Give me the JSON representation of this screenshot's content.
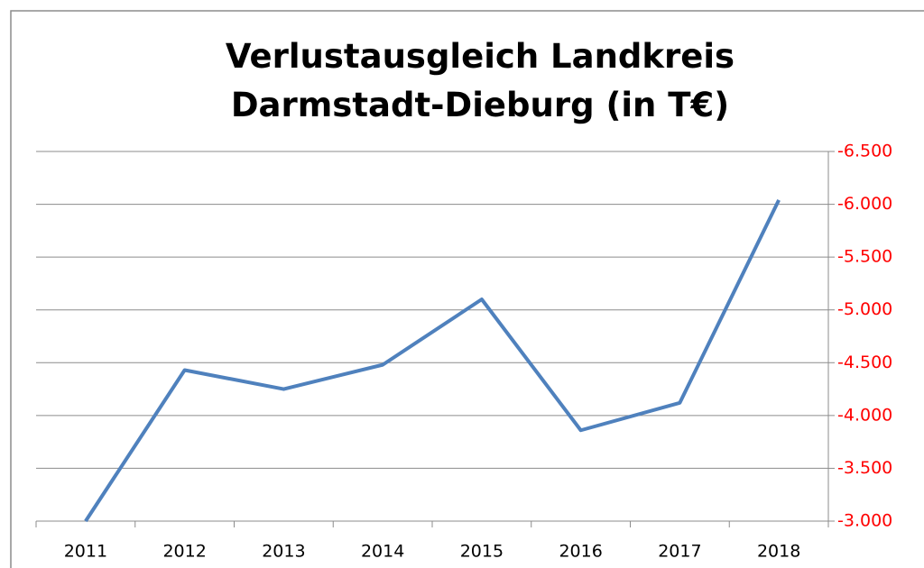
{
  "chart_data": {
    "type": "line",
    "title": "Verlustausgleich Landkreis Darmstadt-Dieburg (in T€)",
    "categories": [
      "2011",
      "2012",
      "2013",
      "2014",
      "2015",
      "2016",
      "2017",
      "2018"
    ],
    "series": [
      {
        "name": "Verlustausgleich",
        "color": "#4f81bd",
        "values": [
          -3000,
          -4430,
          -4250,
          -4480,
          -5100,
          -3860,
          -4120,
          -6040
        ]
      }
    ],
    "ylim": [
      -3000,
      -6500
    ],
    "yticks": [
      {
        "value": -3000,
        "label": "-3.000"
      },
      {
        "value": -3500,
        "label": "-3.500"
      },
      {
        "value": -4000,
        "label": "-4.000"
      },
      {
        "value": -4500,
        "label": "-4.500"
      },
      {
        "value": -5000,
        "label": "-5.000"
      },
      {
        "value": -5500,
        "label": "-5.500"
      },
      {
        "value": -6000,
        "label": "-6.000"
      },
      {
        "value": -6500,
        "label": "-6.500"
      }
    ],
    "y_axis_side": "right",
    "ytick_color": "#ff0000",
    "grid": true,
    "legend": false
  }
}
